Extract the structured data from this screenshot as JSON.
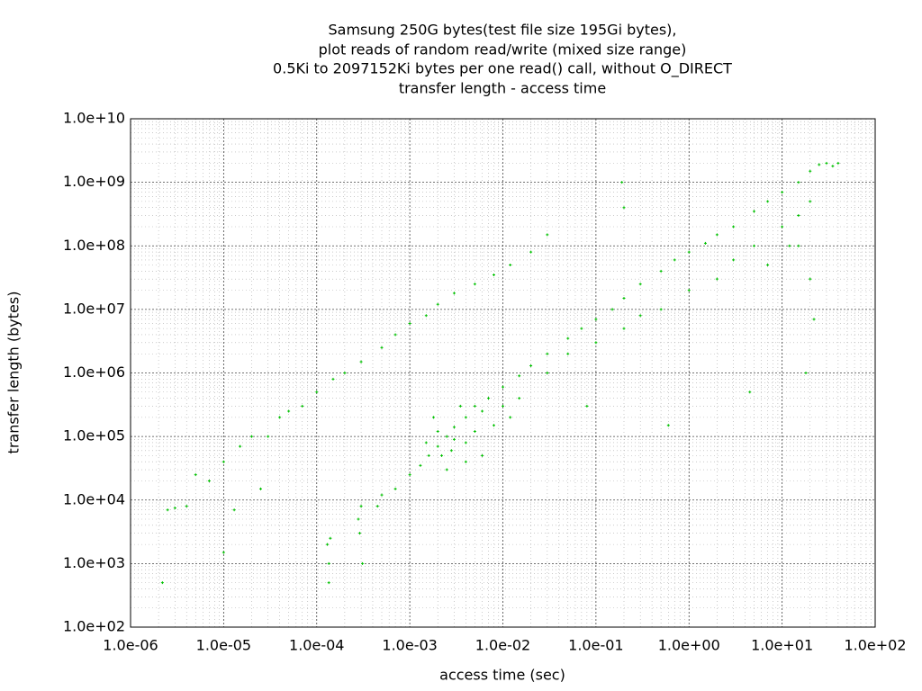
{
  "chart_data": {
    "type": "scatter",
    "title": [
      "Samsung 250G bytes(test file size 195Gi bytes),",
      "plot reads of random read/write (mixed size range)",
      "0.5Ki to 2097152Ki bytes per one read() call, without O_DIRECT",
      "transfer length - access time"
    ],
    "x_label": "access time (sec)",
    "y_label": "transfer length (bytes)",
    "x_log": true,
    "y_log": true,
    "grid": true,
    "minor_grid": true,
    "xlim": [
      1e-06,
      100
    ],
    "ylim": [
      100,
      10000000000.0
    ],
    "xticks": [
      {
        "value": 1e-06,
        "label": "1.0e-06"
      },
      {
        "value": 1e-05,
        "label": "1.0e-05"
      },
      {
        "value": 0.0001,
        "label": "1.0e-04"
      },
      {
        "value": 0.001,
        "label": "1.0e-03"
      },
      {
        "value": 0.01,
        "label": "1.0e-02"
      },
      {
        "value": 0.1,
        "label": "1.0e-01"
      },
      {
        "value": 1,
        "label": "1.0e+00"
      },
      {
        "value": 10,
        "label": "1.0e+01"
      },
      {
        "value": 100,
        "label": "1.0e+02"
      }
    ],
    "yticks": [
      {
        "value": 100,
        "label": "1.0e+02"
      },
      {
        "value": 1000,
        "label": "1.0e+03"
      },
      {
        "value": 10000,
        "label": "1.0e+04"
      },
      {
        "value": 100000,
        "label": "1.0e+05"
      },
      {
        "value": 1000000,
        "label": "1.0e+06"
      },
      {
        "value": 10000000,
        "label": "1.0e+07"
      },
      {
        "value": 100000000,
        "label": "1.0e+08"
      },
      {
        "value": 1000000000,
        "label": "1.0e+09"
      },
      {
        "value": 10000000000,
        "label": "1.0e+10"
      }
    ],
    "series": [
      {
        "color": "#00c000",
        "x": [
          0.00028,
          0.00029,
          0.0003,
          0.00031,
          0.000135,
          0.000135,
          0.00014,
          0.00013,
          0.00045,
          0.0005,
          0.0007,
          0.001,
          0.0013,
          0.0016,
          0.002,
          0.0025,
          0.003,
          0.004,
          0.005,
          0.007,
          0.01,
          0.015,
          0.02,
          0.03,
          0.05,
          0.07,
          0.1,
          0.15,
          0.2,
          0.3,
          0.5,
          0.7,
          1,
          1.5,
          2,
          3,
          5,
          7,
          10,
          15,
          20,
          25,
          30,
          40,
          35,
          0.0015,
          0.002,
          0.0022,
          0.0028,
          0.003,
          0.0035,
          0.004,
          0.005,
          0.006,
          0.006,
          0.008,
          0.01,
          0.012,
          0.015,
          0.0018,
          0.0025,
          0.004,
          0.05,
          0.1,
          0.2,
          0.3,
          0.5,
          1,
          2,
          3,
          5,
          7,
          10,
          15,
          20,
          12,
          15,
          20,
          22,
          18,
          4.5,
          0.6,
          0.08,
          0.03,
          0.19,
          0.2,
          2.2e-06,
          2.5e-06,
          3e-06,
          4e-06,
          5e-06,
          7e-06,
          1e-05,
          1.5e-05,
          2e-05,
          3e-05,
          4e-05,
          5e-05,
          7e-05,
          0.0001,
          0.00015,
          0.0002,
          0.0003,
          0.0005,
          0.0007,
          0.001,
          0.0015,
          0.002,
          0.003,
          0.005,
          0.008,
          0.012,
          0.02,
          0.03,
          1e-05,
          1.3e-05,
          2.5e-05
        ],
        "y": [
          5000,
          3000,
          8000,
          1000,
          500,
          1000,
          2500,
          2000,
          8000,
          12000,
          15000,
          25000,
          35000,
          50000,
          70000,
          100000,
          140000,
          200000,
          300000,
          400000,
          600000,
          900000,
          1300000,
          2000000,
          3500000,
          5000000,
          7000000,
          10000000,
          15000000,
          25000000,
          40000000,
          60000000,
          80000000,
          110000000,
          150000000,
          200000000,
          350000000,
          500000000,
          700000000,
          1000000000,
          1500000000,
          1900000000,
          2000000000,
          2000000000,
          1800000000,
          80000,
          120000,
          50000,
          60000,
          90000,
          300000,
          80000,
          120000,
          50000,
          250000,
          150000,
          300000,
          200000,
          400000,
          200000,
          30000,
          40000,
          2000000,
          3000000,
          5000000,
          8000000,
          10000000,
          20000000,
          30000000,
          60000000,
          100000000,
          50000000,
          200000000,
          300000000,
          500000000,
          100000000,
          100000000,
          30000000,
          7000000,
          1000000,
          500000,
          150000,
          300000,
          1000000,
          1000000000,
          400000000,
          500,
          7000,
          7500,
          8000,
          25000,
          20000,
          40000,
          70000,
          100000,
          100000,
          200000,
          250000,
          300000,
          500000,
          800000,
          1000000,
          1500000,
          2500000,
          4000000,
          6000000,
          8000000,
          12000000,
          18000000,
          25000000,
          35000000,
          50000000,
          80000000,
          150000000,
          1500,
          7000,
          15000
        ]
      }
    ]
  }
}
